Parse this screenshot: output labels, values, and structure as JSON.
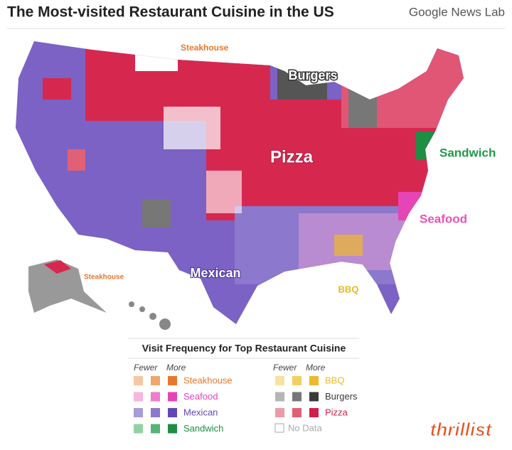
{
  "header": {
    "title": "The Most-visited Restaurant Cuisine in the US",
    "brand": "Google News Lab"
  },
  "map": {
    "labels": [
      {
        "text": "Steakhouse",
        "color": "#e8772e"
      },
      {
        "text": "Burgers",
        "color": "#ffffff"
      },
      {
        "text": "Pizza",
        "color": "#ffffff"
      },
      {
        "text": "Sandwich",
        "color": "#1f9a4a"
      },
      {
        "text": "Seafood",
        "color": "#ee4fb6"
      },
      {
        "text": "Mexican",
        "color": "#ffffff"
      },
      {
        "text": "BBQ",
        "color": "#e8b820"
      },
      {
        "text": "Steakhouse",
        "color": "#e8772e"
      }
    ]
  },
  "legend": {
    "title": "Visit Frequency for Top Restaurant Cuisine",
    "fewer": "Fewer",
    "more": "More",
    "items": [
      {
        "name": "Steakhouse",
        "colors": [
          "#f6c7a2",
          "#f0a56b",
          "#e8772e"
        ]
      },
      {
        "name": "Seafood",
        "colors": [
          "#f7b4de",
          "#f07ccb",
          "#e545b5"
        ]
      },
      {
        "name": "Mexican",
        "colors": [
          "#a99ad8",
          "#8c78cc",
          "#6346b5"
        ]
      },
      {
        "name": "Sandwich",
        "colors": [
          "#93d1a4",
          "#55b476",
          "#1f8e45"
        ]
      },
      {
        "name": "BBQ",
        "colors": [
          "#f8e2a0",
          "#f3cf62",
          "#ecb92a"
        ]
      },
      {
        "name": "Burgers",
        "colors": [
          "#b5b5b5",
          "#777777",
          "#3a3a3a"
        ]
      },
      {
        "name": "Pizza",
        "colors": [
          "#ec9aa9",
          "#e06076",
          "#cf2049"
        ]
      }
    ],
    "no_data": "No Data"
  },
  "logo": "thrillist"
}
